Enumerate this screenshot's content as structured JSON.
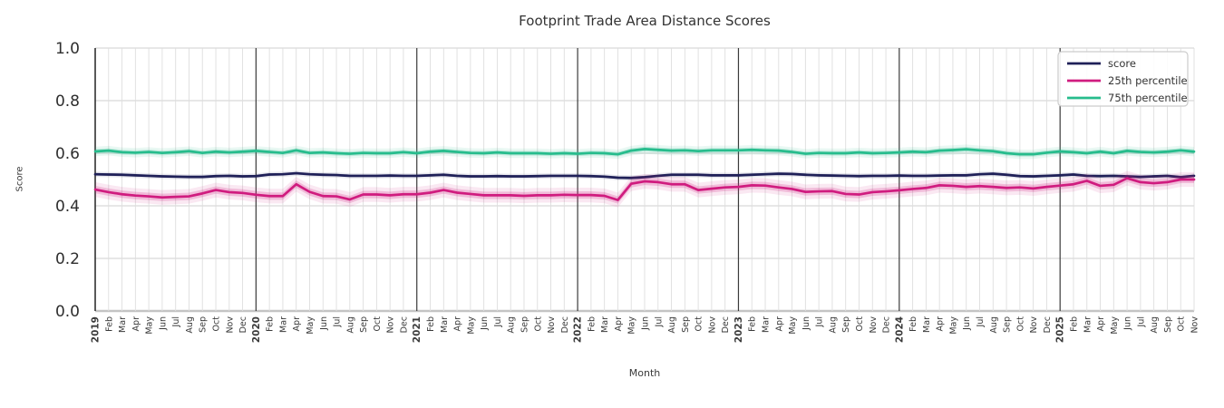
{
  "chart_data": {
    "type": "line",
    "title": "Footprint Trade Area Distance Scores",
    "xlabel": "Month",
    "ylabel": "Score",
    "ylim": [
      0.0,
      1.0
    ],
    "yticks": [
      0.0,
      0.2,
      0.4,
      0.6,
      0.8,
      1.0
    ],
    "grid": true,
    "legend_position": "upper right",
    "x_tick_labels": [
      "2019",
      "Feb",
      "Mar",
      "Apr",
      "May",
      "Jun",
      "Jul",
      "Aug",
      "Sep",
      "Oct",
      "Nov",
      "Dec",
      "2020",
      "Feb",
      "Mar",
      "Apr",
      "May",
      "Jun",
      "Jul",
      "Aug",
      "Sep",
      "Oct",
      "Nov",
      "Dec",
      "2021",
      "Feb",
      "Mar",
      "Apr",
      "May",
      "Jun",
      "Jul",
      "Aug",
      "Sep",
      "Oct",
      "Nov",
      "Dec",
      "2022",
      "Feb",
      "Mar",
      "Apr",
      "May",
      "Jun",
      "Jul",
      "Aug",
      "Sep",
      "Oct",
      "Nov",
      "Dec",
      "2023",
      "Feb",
      "Mar",
      "Apr",
      "May",
      "Jun",
      "Jul",
      "Aug",
      "Sep",
      "Oct",
      "Nov",
      "Dec",
      "2024",
      "Feb",
      "Mar",
      "Apr",
      "May",
      "Jun",
      "Jul",
      "Aug",
      "Sep",
      "Oct",
      "Nov",
      "Dec",
      "2025",
      "Feb",
      "Mar",
      "Apr",
      "May",
      "Jun",
      "Jul",
      "Aug",
      "Sep",
      "Oct",
      "Nov"
    ],
    "year_start_indices": [
      0,
      12,
      24,
      36,
      48,
      60,
      72
    ],
    "series": [
      {
        "name": "score",
        "color": "#1f2058",
        "band_halfwidth": 0.005,
        "values": [
          0.52,
          0.519,
          0.518,
          0.516,
          0.514,
          0.512,
          0.511,
          0.51,
          0.51,
          0.513,
          0.514,
          0.512,
          0.513,
          0.519,
          0.52,
          0.524,
          0.52,
          0.518,
          0.517,
          0.514,
          0.514,
          0.514,
          0.515,
          0.514,
          0.514,
          0.516,
          0.518,
          0.514,
          0.512,
          0.512,
          0.513,
          0.512,
          0.512,
          0.513,
          0.514,
          0.514,
          0.514,
          0.513,
          0.511,
          0.507,
          0.506,
          0.509,
          0.514,
          0.518,
          0.518,
          0.518,
          0.516,
          0.516,
          0.516,
          0.518,
          0.52,
          0.522,
          0.521,
          0.518,
          0.516,
          0.515,
          0.514,
          0.513,
          0.514,
          0.514,
          0.515,
          0.514,
          0.514,
          0.515,
          0.516,
          0.516,
          0.52,
          0.522,
          0.518,
          0.513,
          0.512,
          0.514,
          0.516,
          0.519,
          0.514,
          0.513,
          0.514,
          0.512,
          0.51,
          0.512,
          0.514,
          0.509,
          0.514
        ]
      },
      {
        "name": "25th percentile",
        "color": "#d01c7f",
        "band_halfwidth": 0.014,
        "values": [
          0.462,
          0.452,
          0.444,
          0.439,
          0.436,
          0.432,
          0.434,
          0.436,
          0.447,
          0.46,
          0.452,
          0.449,
          0.442,
          0.437,
          0.437,
          0.482,
          0.453,
          0.437,
          0.436,
          0.424,
          0.443,
          0.443,
          0.44,
          0.444,
          0.444,
          0.45,
          0.46,
          0.45,
          0.445,
          0.44,
          0.44,
          0.44,
          0.438,
          0.44,
          0.44,
          0.442,
          0.441,
          0.441,
          0.438,
          0.422,
          0.484,
          0.493,
          0.49,
          0.482,
          0.482,
          0.46,
          0.465,
          0.47,
          0.472,
          0.478,
          0.477,
          0.47,
          0.464,
          0.453,
          0.455,
          0.456,
          0.445,
          0.443,
          0.452,
          0.455,
          0.459,
          0.464,
          0.468,
          0.478,
          0.476,
          0.472,
          0.475,
          0.472,
          0.468,
          0.47,
          0.466,
          0.472,
          0.477,
          0.482,
          0.495,
          0.476,
          0.48,
          0.505,
          0.49,
          0.486,
          0.49,
          0.5,
          0.5
        ]
      },
      {
        "name": "75th percentile",
        "color": "#26bc8c",
        "band_halfwidth": 0.009,
        "values": [
          0.607,
          0.61,
          0.604,
          0.602,
          0.605,
          0.601,
          0.604,
          0.608,
          0.601,
          0.606,
          0.603,
          0.606,
          0.609,
          0.605,
          0.601,
          0.611,
          0.601,
          0.603,
          0.6,
          0.598,
          0.601,
          0.6,
          0.6,
          0.604,
          0.6,
          0.606,
          0.609,
          0.605,
          0.601,
          0.6,
          0.603,
          0.6,
          0.6,
          0.6,
          0.598,
          0.6,
          0.598,
          0.601,
          0.6,
          0.596,
          0.61,
          0.616,
          0.613,
          0.61,
          0.611,
          0.608,
          0.611,
          0.611,
          0.611,
          0.613,
          0.611,
          0.61,
          0.605,
          0.598,
          0.601,
          0.6,
          0.6,
          0.603,
          0.6,
          0.601,
          0.603,
          0.606,
          0.604,
          0.61,
          0.612,
          0.615,
          0.611,
          0.608,
          0.6,
          0.596,
          0.596,
          0.602,
          0.607,
          0.604,
          0.6,
          0.606,
          0.6,
          0.609,
          0.605,
          0.603,
          0.606,
          0.611,
          0.606
        ]
      }
    ],
    "colors": {
      "grid_month": "#dedede",
      "grid_year": "#3b3b3b",
      "grid_horizontal": "#cfcfcf",
      "bottom_spine": "#c4c4c4",
      "left_spine": "#303030",
      "tick_text": "#3a3a3a",
      "legend_border": "#cccccc"
    }
  }
}
